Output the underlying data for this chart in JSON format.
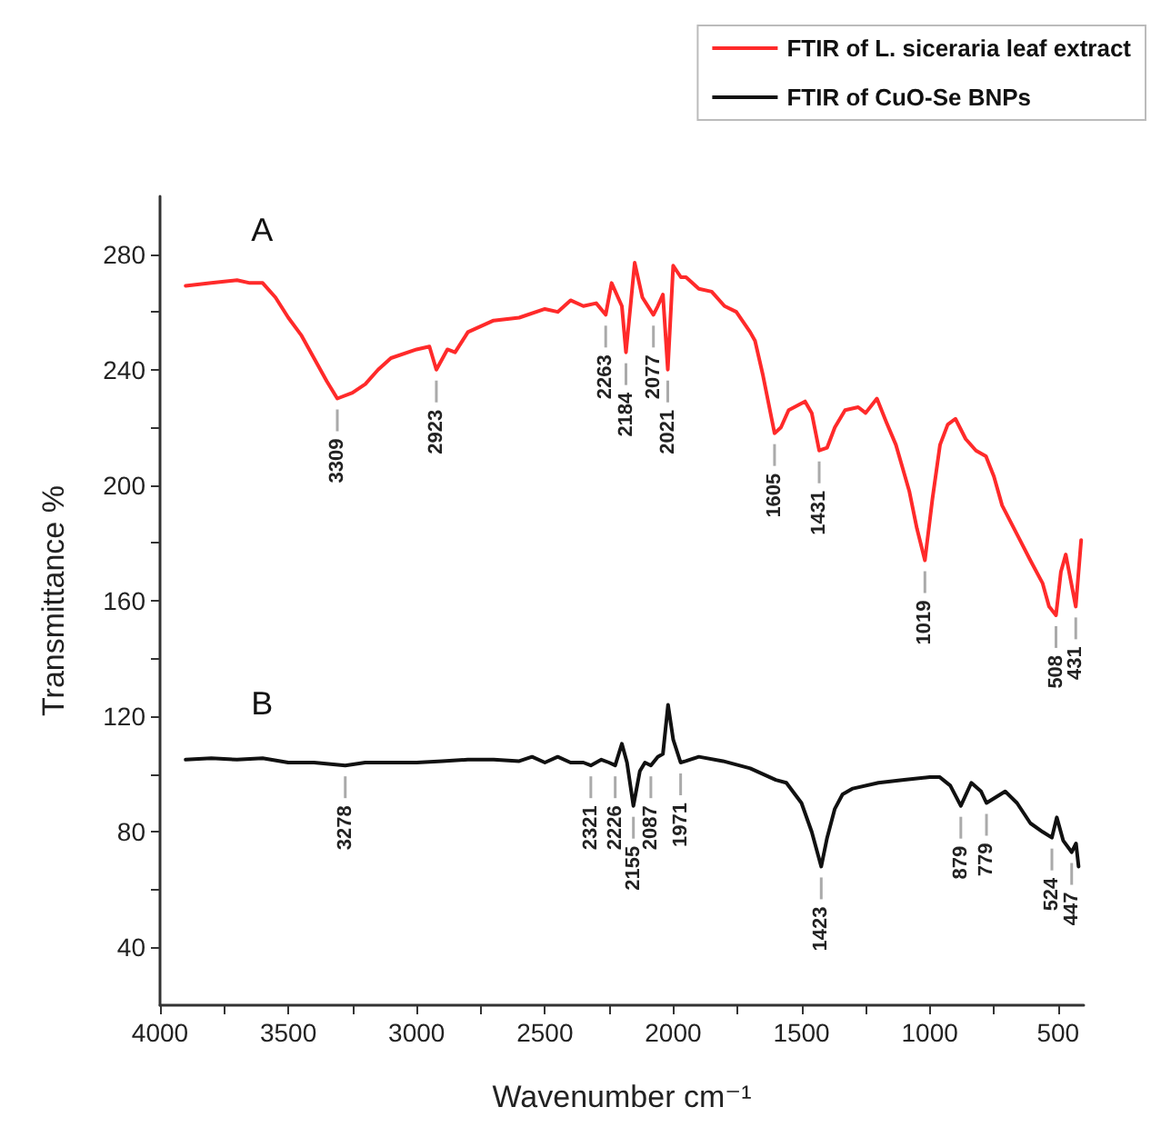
{
  "chart_data": {
    "type": "line",
    "xlabel": "Wavenumber cm⁻¹",
    "ylabel": "Transmittance %",
    "xlim": [
      4000,
      400
    ],
    "ylim": [
      20,
      300
    ],
    "xticks": [
      4000,
      {
        "value": 3750,
        "label": null
      },
      3500,
      {
        "value": 3250,
        "label": null
      },
      3000,
      {
        "value": 2750,
        "label": null
      },
      2500,
      {
        "value": 2250,
        "label": null
      },
      2000,
      {
        "value": 1750,
        "label": null
      },
      1500,
      {
        "value": 1250,
        "label": null
      },
      1000,
      {
        "value": 750,
        "label": null
      },
      500
    ],
    "yticks": [
      40,
      {
        "value": 60,
        "label": null
      },
      80,
      {
        "value": 100,
        "label": null
      },
      120,
      {
        "value": 140,
        "label": null
      },
      160,
      {
        "value": 180,
        "label": null
      },
      200,
      {
        "value": 220,
        "label": null
      },
      240,
      {
        "value": 260,
        "label": null
      },
      280
    ],
    "grid": false,
    "legend": "top right",
    "marker": "none",
    "line_style": "solid",
    "series": [
      {
        "name": "FTIR of L. siceraria leaf extract",
        "color": "#ff2a2a",
        "x": [
          3900,
          3800,
          3700,
          3650,
          3600,
          3550,
          3500,
          3450,
          3400,
          3350,
          3309,
          3250,
          3200,
          3150,
          3100,
          3000,
          2950,
          2923,
          2880,
          2850,
          2800,
          2700,
          2600,
          2500,
          2450,
          2400,
          2350,
          2300,
          2263,
          2240,
          2200,
          2184,
          2150,
          2120,
          2077,
          2060,
          2040,
          2021,
          2000,
          1970,
          1950,
          1900,
          1850,
          1800,
          1754,
          1700,
          1681,
          1650,
          1605,
          1580,
          1550,
          1486,
          1460,
          1431,
          1400,
          1370,
          1330,
          1279,
          1250,
          1206,
          1170,
          1132,
          1080,
          1050,
          1019,
          990,
          960,
          930,
          900,
          860,
          820,
          781,
          750,
          718,
          660,
          608,
          560,
          535,
          508,
          489,
          470,
          431,
          410
        ],
        "values": [
          269,
          270,
          271,
          270,
          270,
          265,
          258,
          252,
          244,
          236,
          230,
          232,
          235,
          240,
          244,
          247,
          248,
          240,
          247,
          246,
          253,
          257,
          258,
          261,
          260,
          264,
          262,
          263,
          259,
          270,
          262,
          246,
          277,
          265,
          259,
          262,
          266,
          240,
          276,
          272,
          272,
          268,
          267,
          262,
          260,
          253,
          250,
          238,
          218,
          220,
          226,
          229,
          225,
          212,
          213,
          220,
          226,
          227,
          225,
          230,
          222,
          214,
          198,
          185,
          174,
          195,
          214,
          221,
          223,
          216,
          212,
          210,
          203,
          193,
          183,
          174,
          166,
          158,
          155,
          170,
          176,
          158,
          181
        ]
      },
      {
        "name": "FTIR of CuO-Se BNPs",
        "color": "#111111",
        "x": [
          3900,
          3800,
          3700,
          3600,
          3500,
          3400,
          3278,
          3200,
          3100,
          3000,
          2900,
          2800,
          2700,
          2600,
          2550,
          2500,
          2450,
          2400,
          2350,
          2321,
          2280,
          2250,
          2226,
          2200,
          2180,
          2155,
          2130,
          2110,
          2087,
          2060,
          2040,
          2020,
          2000,
          1971,
          1951,
          1900,
          1806,
          1700,
          1600,
          1559,
          1500,
          1460,
          1423,
          1400,
          1370,
          1340,
          1300,
          1200,
          1100,
          1000,
          962,
          920,
          879,
          838,
          800,
          779,
          706,
          660,
          608,
          560,
          524,
          505,
          480,
          447,
          430,
          420
        ],
        "values": [
          105,
          105.5,
          105,
          105.5,
          104,
          104,
          103,
          104,
          104,
          104,
          104.5,
          105,
          105,
          104.5,
          106,
          104,
          106,
          104,
          104,
          103,
          105,
          104,
          103,
          110.5,
          104,
          89,
          101,
          104,
          103,
          106,
          107,
          124,
          112,
          104,
          104.5,
          106,
          104.5,
          102,
          98,
          97,
          90,
          80,
          68,
          78,
          88,
          93,
          95,
          97,
          98,
          99,
          99,
          96,
          89,
          97,
          94,
          90,
          94,
          90,
          83,
          80,
          78,
          85,
          77,
          73,
          76,
          68
        ]
      }
    ],
    "annotations": [
      "A",
      "B",
      {
        "text": "3309",
        "x": 3309,
        "y": 230
      },
      {
        "text": "2923",
        "x": 2923,
        "y": 240
      },
      {
        "text": "2263",
        "x": 2263,
        "y": 259
      },
      {
        "text": "2184",
        "x": 2184,
        "y": 246
      },
      {
        "text": "2077",
        "x": 2077,
        "y": 259
      },
      {
        "text": "2021",
        "x": 2021,
        "y": 240
      },
      {
        "text": "1605",
        "x": 1605,
        "y": 218
      },
      {
        "text": "1431",
        "x": 1431,
        "y": 212
      },
      {
        "text": "1019",
        "x": 1019,
        "y": 174
      },
      {
        "text": "508",
        "x": 508,
        "y": 155
      },
      {
        "text": "431",
        "x": 431,
        "y": 158
      },
      {
        "text": "3278",
        "x": 3278,
        "y": 103
      },
      {
        "text": "2321",
        "x": 2321,
        "y": 103
      },
      {
        "text": "2226",
        "x": 2226,
        "y": 103
      },
      {
        "text": "2155",
        "x": 2155,
        "y": 89
      },
      {
        "text": "2087",
        "x": 2087,
        "y": 103
      },
      {
        "text": "1971",
        "x": 1971,
        "y": 104
      },
      {
        "text": "1423",
        "x": 1423,
        "y": 68
      },
      {
        "text": "879",
        "x": 879,
        "y": 89
      },
      {
        "text": "779",
        "x": 779,
        "y": 90
      },
      {
        "text": "524",
        "x": 524,
        "y": 78
      },
      {
        "text": "447",
        "x": 447,
        "y": 73
      }
    ]
  }
}
